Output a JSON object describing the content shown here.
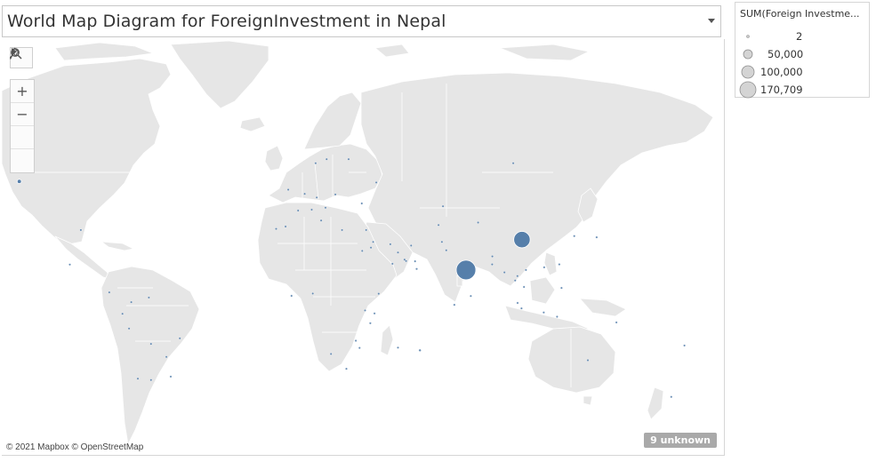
{
  "title": "World Map Diagram for ForeignInvestment in Nepal",
  "toolbar": {
    "search_icon": "search-icon",
    "zoom_in_label": "+",
    "zoom_out_label": "−",
    "pin_icon": "pin-icon",
    "expand_icon": "play-icon"
  },
  "legend": {
    "title": "SUM(Foreign Investme...",
    "items": [
      {
        "label": "2",
        "value": 2
      },
      {
        "label": "50,000",
        "value": 50000
      },
      {
        "label": "100,000",
        "value": 100000
      },
      {
        "label": "170,709",
        "value": 170709
      }
    ]
  },
  "attribution": "© 2021 Mapbox © OpenStreetMap",
  "unknown_badge": "9 unknown",
  "colors": {
    "land": "#e6e6e6",
    "border": "#ffffff",
    "marker": "#4e79a7",
    "legend_marker": "#d4d4d4"
  },
  "chart_data": {
    "type": "scatter",
    "measure": "SUM(Foreign Investment)",
    "points": [
      {
        "lon": 104.0,
        "lat": 35.0,
        "value": 120000
      },
      {
        "lon": 78.5,
        "lat": 21.0,
        "value": 170709
      },
      {
        "lon": -125.0,
        "lat": 56.0,
        "value": 8000
      },
      {
        "lon": -97.0,
        "lat": 39.0,
        "value": 900
      },
      {
        "lon": 57.5,
        "lat": -20.2,
        "value": 2500
      },
      {
        "lon": 73.2,
        "lat": 3.2,
        "value": 1400
      },
      {
        "lon": 103.8,
        "lat": 1.35,
        "value": 1600
      },
      {
        "lon": 55.3,
        "lat": 25.2,
        "value": 800
      },
      {
        "lon": 2.0,
        "lat": 46.5,
        "value": 600
      },
      {
        "lon": -2.5,
        "lat": 53.5,
        "value": 500
      },
      {
        "lon": 10.5,
        "lat": 51.0,
        "value": 300
      },
      {
        "lon": 5.0,
        "lat": 52.2,
        "value": 200
      },
      {
        "lon": 8.2,
        "lat": 46.8,
        "value": 200
      },
      {
        "lon": 15.0,
        "lat": 62.0,
        "value": 100
      },
      {
        "lon": 25.0,
        "lat": 62.0,
        "value": 80
      },
      {
        "lon": 10.0,
        "lat": 61.0,
        "value": 60
      },
      {
        "lon": 19.0,
        "lat": 52.0,
        "value": 80
      },
      {
        "lon": 14.5,
        "lat": 47.5,
        "value": 60
      },
      {
        "lon": 12.5,
        "lat": 42.8,
        "value": 100
      },
      {
        "lon": -3.7,
        "lat": 40.4,
        "value": 60
      },
      {
        "lon": -8.0,
        "lat": 39.5,
        "value": 30
      },
      {
        "lon": 33.0,
        "lat": 39.0,
        "value": 60
      },
      {
        "lon": 22.0,
        "lat": 39.0,
        "value": 40
      },
      {
        "lon": 31.0,
        "lat": 49.0,
        "value": 40
      },
      {
        "lon": 37.6,
        "lat": 55.7,
        "value": 60
      },
      {
        "lon": 100.0,
        "lat": 61.0,
        "value": 80
      },
      {
        "lon": 68.0,
        "lat": 48.0,
        "value": 40
      },
      {
        "lon": 53.5,
        "lat": 32.4,
        "value": 40
      },
      {
        "lon": 44.0,
        "lat": 33.0,
        "value": 30
      },
      {
        "lon": 45.0,
        "lat": 24.0,
        "value": 120
      },
      {
        "lon": 51.2,
        "lat": 25.3,
        "value": 90
      },
      {
        "lon": 47.5,
        "lat": 29.3,
        "value": 40
      },
      {
        "lon": 50.5,
        "lat": 26.0,
        "value": 30
      },
      {
        "lon": 56.0,
        "lat": 21.5,
        "value": 30
      },
      {
        "lon": 35.2,
        "lat": 31.5,
        "value": 30
      },
      {
        "lon": 36.2,
        "lat": 34.0,
        "value": 30
      },
      {
        "lon": 69.5,
        "lat": 30.3,
        "value": 60
      },
      {
        "lon": 67.5,
        "lat": 34.0,
        "value": 30
      },
      {
        "lon": 90.4,
        "lat": 23.7,
        "value": 200
      },
      {
        "lon": 90.5,
        "lat": 27.5,
        "value": 60
      },
      {
        "lon": 80.7,
        "lat": 7.8,
        "value": 120
      },
      {
        "lon": 96.0,
        "lat": 19.8,
        "value": 60
      },
      {
        "lon": 100.9,
        "lat": 15.8,
        "value": 150
      },
      {
        "lon": 105.8,
        "lat": 21.0,
        "value": 60
      },
      {
        "lon": 104.9,
        "lat": 12.5,
        "value": 40
      },
      {
        "lon": 102.0,
        "lat": 4.2,
        "value": 80
      },
      {
        "lon": 101.9,
        "lat": 18.0,
        "value": 30
      },
      {
        "lon": 114.1,
        "lat": 22.3,
        "value": 200
      },
      {
        "lon": 121.0,
        "lat": 23.7,
        "value": 60
      },
      {
        "lon": 127.8,
        "lat": 36.5,
        "value": 300
      },
      {
        "lon": 138.0,
        "lat": 36.0,
        "value": 400
      },
      {
        "lon": 122.0,
        "lat": 12.0,
        "value": 60
      },
      {
        "lon": 113.9,
        "lat": -0.8,
        "value": 60
      },
      {
        "lon": 134.0,
        "lat": -25.0,
        "value": 250
      },
      {
        "lon": 172.0,
        "lat": -41.0,
        "value": 80
      },
      {
        "lon": 178.0,
        "lat": -17.8,
        "value": 30
      },
      {
        "lon": -102.0,
        "lat": 23.6,
        "value": 60
      },
      {
        "lon": -84.0,
        "lat": 9.7,
        "value": 30
      },
      {
        "lon": -74.0,
        "lat": 4.6,
        "value": 30
      },
      {
        "lon": -78.0,
        "lat": -1.5,
        "value": 30
      },
      {
        "lon": -75.0,
        "lat": -9.2,
        "value": 30
      },
      {
        "lon": -51.9,
        "lat": -14.2,
        "value": 60
      },
      {
        "lon": -65.0,
        "lat": -34.0,
        "value": 40
      },
      {
        "lon": -71.0,
        "lat": -33.4,
        "value": 30
      },
      {
        "lon": -56.0,
        "lat": -32.5,
        "value": 30
      },
      {
        "lon": -58.0,
        "lat": -23.4,
        "value": 30
      },
      {
        "lon": -65.0,
        "lat": -17.0,
        "value": 30
      },
      {
        "lon": -66.0,
        "lat": 7.0,
        "value": 30
      },
      {
        "lon": 31.2,
        "lat": 30.0,
        "value": 30
      },
      {
        "lon": 38.7,
        "lat": 9.0,
        "value": 30
      },
      {
        "lon": 36.8,
        "lat": -1.3,
        "value": 30
      },
      {
        "lon": 32.5,
        "lat": 0.3,
        "value": 30
      },
      {
        "lon": 8.7,
        "lat": 9.1,
        "value": 30
      },
      {
        "lon": -1.0,
        "lat": 7.9,
        "value": 30
      },
      {
        "lon": 24.0,
        "lat": -29.0,
        "value": 40
      },
      {
        "lon": 30.0,
        "lat": -19.0,
        "value": 30
      },
      {
        "lon": 28.3,
        "lat": -15.4,
        "value": 30
      },
      {
        "lon": 34.9,
        "lat": -6.4,
        "value": 30
      },
      {
        "lon": 17.0,
        "lat": -22.0,
        "value": 30
      },
      {
        "lon": 47.5,
        "lat": -18.9,
        "value": 30
      },
      {
        "lon": 66.0,
        "lat": 41.0,
        "value": 30
      },
      {
        "lon": 84.0,
        "lat": 42.0,
        "value": 30
      },
      {
        "lon": 147.0,
        "lat": -6.0,
        "value": 30
      },
      {
        "lon": 120.0,
        "lat": -3.0,
        "value": 30
      }
    ]
  }
}
